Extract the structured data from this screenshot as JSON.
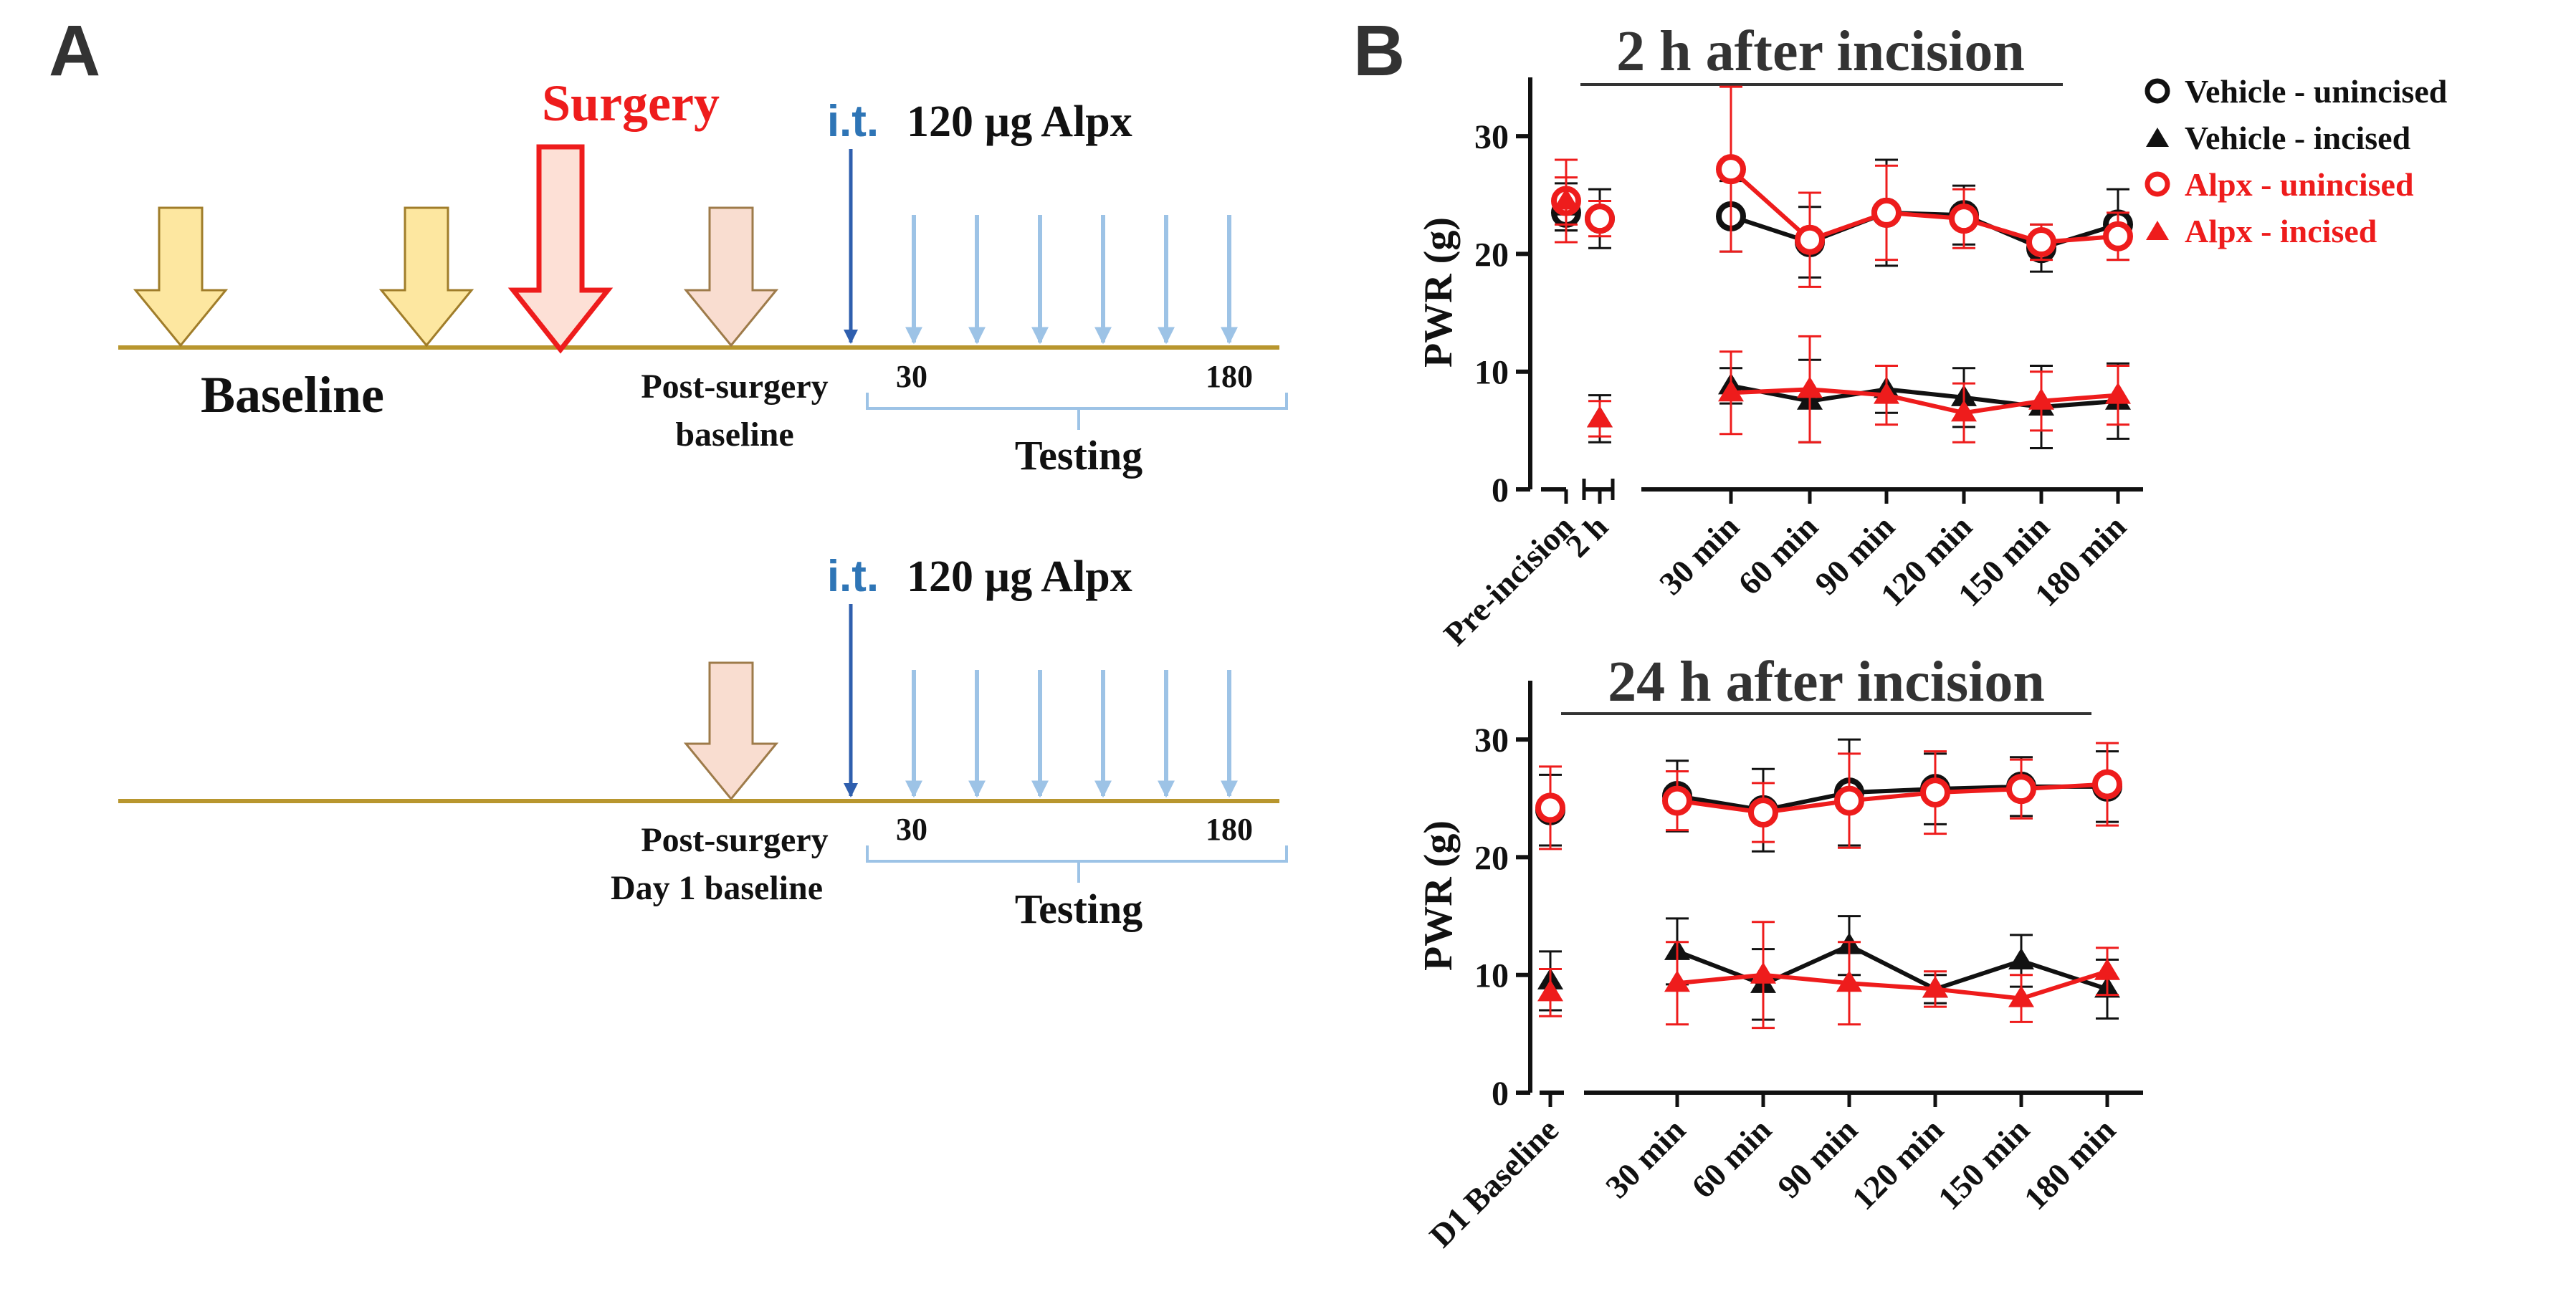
{
  "colors": {
    "black": "#111111",
    "red": "#ee1c1c",
    "axis_line": "#b8962e",
    "yellow_arrow_fill": "#fde7a0",
    "yellow_arrow_stroke": "#a07d2a",
    "peach_arrow_fill": "#f9ddd0",
    "peach_arrow_stroke": "#9e7b4a",
    "surgery_fill": "#fde0d6",
    "surgery_stroke": "#ee1c1c",
    "it_arrow": "#2f5fae",
    "it_label": "#2e75b6",
    "test_arrow": "#9dc3e6",
    "bracket": "#9dc3e6",
    "title_gray": "#333333"
  },
  "panel_a": {
    "label": "A",
    "timeline1": {
      "baseline_label": "Baseline",
      "surgery_label": "Surgery",
      "post_surgery_line1": "Post-surgery",
      "post_surgery_line2": "baseline",
      "it_label": "i.t.",
      "drug_label": "120 µg Alpx",
      "test_start": "30",
      "test_end": "180",
      "testing_label": "Testing"
    },
    "timeline2": {
      "post_surgery_line1": "Post-surgery",
      "post_surgery_line2": "Day 1 baseline",
      "it_label": "i.t.",
      "drug_label": "120 µg Alpx",
      "test_start": "30",
      "test_end": "180",
      "testing_label": "Testing"
    }
  },
  "panel_b": {
    "label": "B",
    "legend": [
      {
        "name": "Vehicle - unincised",
        "color": "#111111",
        "marker": "circle"
      },
      {
        "name": "Vehicle - incised",
        "color": "#111111",
        "marker": "triangle"
      },
      {
        "name": "Alpx - unincised",
        "color": "#ee1c1c",
        "marker": "circle"
      },
      {
        "name": "Alpx - incised",
        "color": "#ee1c1c",
        "marker": "triangle"
      }
    ]
  },
  "chart_data": [
    {
      "type": "line",
      "title": "2 h after incision",
      "ylabel": "PWR (g)",
      "xlabel": "",
      "ylim": [
        0,
        35
      ],
      "yticks": [
        0,
        10,
        20,
        30
      ],
      "categories": [
        "Pre-incision",
        "2 h",
        "30 min",
        "60 min",
        "90 min",
        "120 min",
        "150 min",
        "180 min"
      ],
      "series": [
        {
          "name": "Vehicle - unincised",
          "marker": "circle",
          "color": "#111111",
          "values": [
            23.5,
            23,
            23.2,
            21,
            23.5,
            23.3,
            20.5,
            22.5
          ],
          "errors": [
            1.5,
            2.5,
            3.0,
            3.0,
            4.5,
            2.5,
            2.0,
            3.0
          ]
        },
        {
          "name": "Vehicle - incised",
          "marker": "triangle",
          "color": "#111111",
          "values": [
            24,
            6,
            8.8,
            7.5,
            8.5,
            7.8,
            7,
            7.5
          ],
          "errors": [
            2.0,
            2.0,
            1.5,
            3.5,
            2.0,
            2.5,
            3.5,
            3.2
          ]
        },
        {
          "name": "Alpx - unincised",
          "marker": "circle",
          "color": "#ee1c1c",
          "values": [
            24.5,
            23,
            27.2,
            21.2,
            23.5,
            23,
            21,
            21.5
          ],
          "errors": [
            3.5,
            1.5,
            7.0,
            4.0,
            4.0,
            2.5,
            1.5,
            2.0
          ]
        },
        {
          "name": "Alpx - incised",
          "marker": "triangle",
          "color": "#ee1c1c",
          "values": [
            24.5,
            6,
            8.2,
            8.5,
            8,
            6.5,
            7.5,
            8
          ],
          "errors": [
            2.0,
            1.5,
            3.5,
            4.5,
            2.5,
            2.5,
            2.5,
            2.5
          ]
        }
      ],
      "line_from_index": 2
    },
    {
      "type": "line",
      "title": "24 h after incision",
      "ylabel": "PWR (g)",
      "xlabel": "",
      "ylim": [
        0,
        35
      ],
      "yticks": [
        0,
        10,
        20,
        30
      ],
      "categories": [
        "D1 Baseline",
        "30 min",
        "60 min",
        "90 min",
        "120 min",
        "150 min",
        "180 min"
      ],
      "series": [
        {
          "name": "Vehicle - unincised",
          "marker": "circle",
          "color": "#111111",
          "values": [
            24,
            25.2,
            24,
            25.5,
            25.8,
            26,
            26
          ],
          "errors": [
            3.0,
            3.0,
            3.5,
            4.5,
            3.0,
            2.5,
            3.0
          ]
        },
        {
          "name": "Vehicle - incised",
          "marker": "triangle",
          "color": "#111111",
          "values": [
            9.5,
            12,
            9.2,
            12.5,
            8.8,
            11.2,
            8.8
          ],
          "errors": [
            2.5,
            2.8,
            3.0,
            2.5,
            1.2,
            2.2,
            2.5
          ]
        },
        {
          "name": "Alpx - unincised",
          "marker": "circle",
          "color": "#ee1c1c",
          "values": [
            24.2,
            24.8,
            23.8,
            24.8,
            25.5,
            25.8,
            26.2
          ],
          "errors": [
            3.5,
            2.5,
            2.5,
            4.0,
            3.5,
            2.5,
            3.5
          ]
        },
        {
          "name": "Alpx - incised",
          "marker": "triangle",
          "color": "#ee1c1c",
          "values": [
            8.5,
            9.3,
            10,
            9.3,
            8.8,
            8,
            10.3
          ],
          "errors": [
            2.0,
            3.5,
            4.5,
            3.5,
            1.5,
            2.0,
            2.0
          ]
        }
      ],
      "line_from_index": 1
    }
  ]
}
